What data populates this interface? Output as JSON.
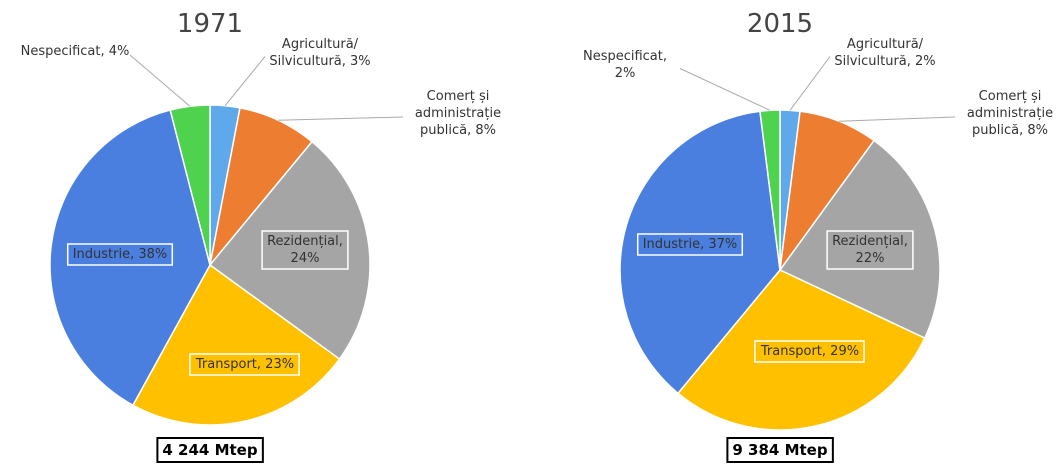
{
  "chart_data": [
    {
      "type": "pie",
      "title": "1971",
      "total": "4 244 Mtep",
      "values": [
        3,
        8,
        24,
        23,
        38,
        4
      ],
      "value_labels": [
        "Agricultură/\nSilvicultură, 3%",
        "Comerț și\nadministrație\npublică, 8%",
        "Rezidențial,\n24%",
        "Transport, 23%",
        "Industrie, 38%",
        "Nespecificat, 4%"
      ],
      "colors": [
        "#5fa8ea",
        "#ed7d31",
        "#a5a5a5",
        "#ffc000",
        "#4a7fe0",
        "#4fd34f"
      ]
    },
    {
      "type": "pie",
      "title": "2015",
      "total": "9 384 Mtep",
      "values": [
        2,
        8,
        22,
        29,
        37,
        2
      ],
      "value_labels": [
        "Agricultură/\nSilvicultură, 2%",
        "Comerț și\nadministrație\npublică, 8%",
        "Rezidențial,\n22%",
        "Transport, 29%",
        "Industrie, 37%",
        "Nespecificat,\n2%"
      ],
      "colors": [
        "#5fa8ea",
        "#ed7d31",
        "#a5a5a5",
        "#ffc000",
        "#4a7fe0",
        "#4fd34f"
      ]
    }
  ]
}
